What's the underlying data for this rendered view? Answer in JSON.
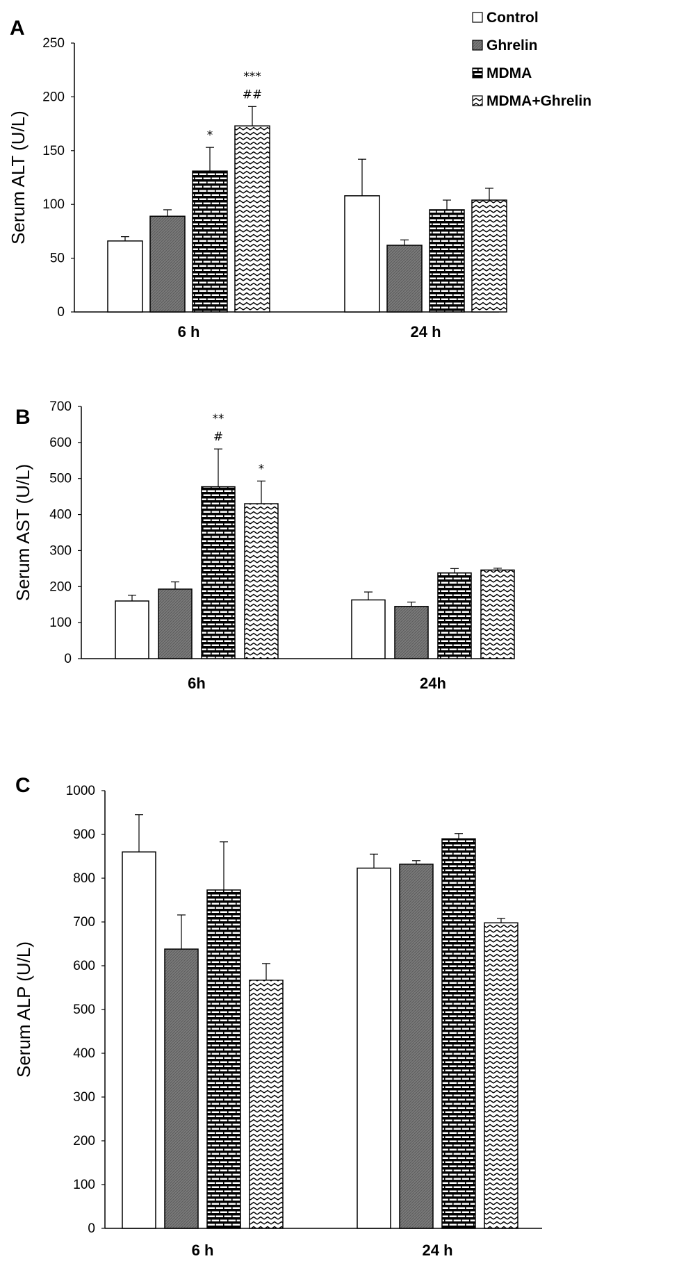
{
  "legend": {
    "placement": "top-right",
    "items": [
      {
        "label": "Control",
        "fill": "white"
      },
      {
        "label": "Ghrelin",
        "fill": "gray"
      },
      {
        "label": "MDMA",
        "fill": "brick"
      },
      {
        "label": "MDMA+Ghrelin",
        "fill": "zigzag"
      }
    ]
  },
  "colors": {
    "bar_stroke": "#000000",
    "gray_fill": "#787878",
    "axis": "#000000"
  },
  "chart_data": [
    {
      "type": "bar",
      "panel": "A",
      "ylabel": "Serum ALT (U/L)",
      "categories": [
        "6 h",
        "24 h"
      ],
      "ylim": [
        0,
        250
      ],
      "yticks": [
        0,
        50,
        100,
        150,
        200,
        250
      ],
      "grid": false,
      "series": [
        {
          "name": "Control",
          "fill": "white",
          "values": [
            66,
            108
          ],
          "errors": [
            4,
            34
          ]
        },
        {
          "name": "Ghrelin",
          "fill": "gray",
          "values": [
            89,
            62
          ],
          "errors": [
            6,
            5
          ]
        },
        {
          "name": "MDMA",
          "fill": "brick",
          "values": [
            131,
            95
          ],
          "errors": [
            22,
            9
          ]
        },
        {
          "name": "MDMA+Ghrelin",
          "fill": "zigzag",
          "values": [
            173,
            104
          ],
          "errors": [
            18,
            11
          ]
        }
      ],
      "annotations": [
        {
          "category": 0,
          "series": 2,
          "lines": [
            "*"
          ]
        },
        {
          "category": 0,
          "series": 3,
          "lines": [
            "***",
            "##"
          ]
        }
      ]
    },
    {
      "type": "bar",
      "panel": "B",
      "ylabel": "Serum AST (U/L)",
      "categories": [
        "6h",
        "24h"
      ],
      "ylim": [
        0,
        700
      ],
      "yticks": [
        0,
        100,
        200,
        300,
        400,
        500,
        600,
        700
      ],
      "grid": false,
      "series": [
        {
          "name": "Control",
          "fill": "white",
          "values": [
            160,
            163
          ],
          "errors": [
            16,
            22
          ]
        },
        {
          "name": "Ghrelin",
          "fill": "gray",
          "values": [
            193,
            145
          ],
          "errors": [
            20,
            12
          ]
        },
        {
          "name": "MDMA",
          "fill": "brick",
          "values": [
            477,
            238
          ],
          "errors": [
            105,
            12
          ]
        },
        {
          "name": "MDMA+Ghrelin",
          "fill": "zigzag",
          "values": [
            430,
            246
          ],
          "errors": [
            63,
            5
          ]
        }
      ],
      "annotations": [
        {
          "category": 0,
          "series": 2,
          "lines": [
            "**",
            "#"
          ]
        },
        {
          "category": 0,
          "series": 3,
          "lines": [
            "*"
          ]
        }
      ]
    },
    {
      "type": "bar",
      "panel": "C",
      "ylabel": "Serum ALP (U/L)",
      "categories": [
        "6 h",
        "24 h"
      ],
      "ylim": [
        0,
        1000
      ],
      "yticks": [
        0,
        100,
        200,
        300,
        400,
        500,
        600,
        700,
        800,
        900,
        1000
      ],
      "grid": false,
      "series": [
        {
          "name": "Control",
          "fill": "white",
          "values": [
            860,
            823
          ],
          "errors": [
            85,
            32
          ]
        },
        {
          "name": "Ghrelin",
          "fill": "gray",
          "values": [
            638,
            832
          ],
          "errors": [
            78,
            8
          ]
        },
        {
          "name": "MDMA",
          "fill": "brick",
          "values": [
            773,
            890
          ],
          "errors": [
            110,
            12
          ]
        },
        {
          "name": "MDMA+Ghrelin",
          "fill": "zigzag",
          "values": [
            567,
            698
          ],
          "errors": [
            38,
            10
          ]
        }
      ],
      "annotations": []
    }
  ]
}
